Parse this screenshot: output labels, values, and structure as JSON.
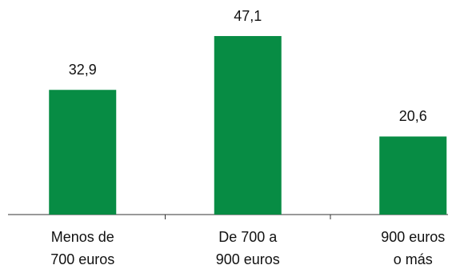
{
  "chart_data": {
    "type": "bar",
    "categories": [
      [
        "Menos de",
        "700 euros"
      ],
      [
        "De 700 a",
        "900 euros"
      ],
      [
        "900 euros",
        "o más"
      ]
    ],
    "values": [
      32.9,
      47.1,
      20.6
    ],
    "value_labels": [
      "32,9",
      "47,1",
      "20,6"
    ],
    "color": "#078c44",
    "ylim": [
      0,
      50
    ]
  }
}
